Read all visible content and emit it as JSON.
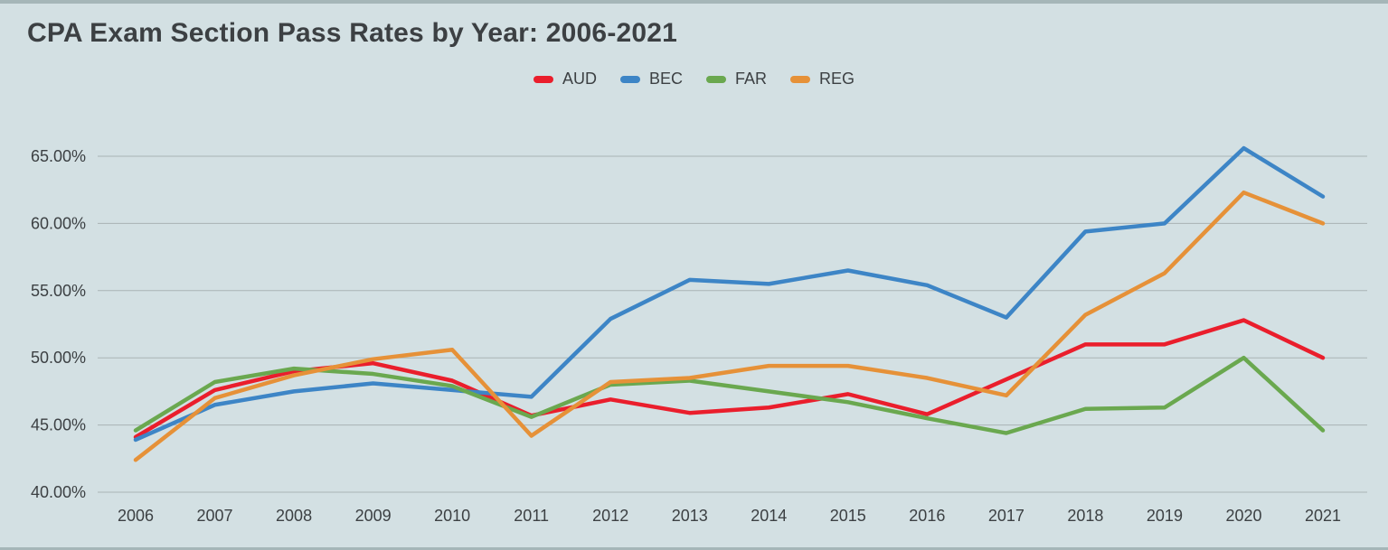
{
  "page": {
    "background_color": "#d3e0e3",
    "edge_color": "#a5b6b8",
    "text_color": "#3c4043",
    "grid_color": "#a9b3b5"
  },
  "chart_data": {
    "type": "line",
    "title": "CPA Exam Section Pass Rates by Year: 2006-2021",
    "xlabel": "",
    "ylabel": "",
    "x": [
      "2006",
      "2007",
      "2008",
      "2009",
      "2010",
      "2011",
      "2012",
      "2013",
      "2014",
      "2015",
      "2016",
      "2017",
      "2018",
      "2019",
      "2020",
      "2021"
    ],
    "ylim": [
      40,
      65
    ],
    "grid": true,
    "legend_position": "top-center",
    "yticks": [
      {
        "value": 40,
        "label": "40.00%"
      },
      {
        "value": 45,
        "label": "45.00%"
      },
      {
        "value": 50,
        "label": "50.00%"
      },
      {
        "value": 55,
        "label": "55.00%"
      },
      {
        "value": 60,
        "label": "60.00%"
      },
      {
        "value": 65,
        "label": "65.00%"
      }
    ],
    "series": [
      {
        "name": "AUD",
        "color": "#ea1e2c",
        "values": [
          44.1,
          47.6,
          49.0,
          49.6,
          48.3,
          45.7,
          46.9,
          45.9,
          46.3,
          47.3,
          45.8,
          48.4,
          51.0,
          51.0,
          52.8,
          50.0
        ]
      },
      {
        "name": "BEC",
        "color": "#3d85c6",
        "values": [
          43.9,
          46.5,
          47.5,
          48.1,
          47.6,
          47.1,
          52.9,
          55.8,
          55.5,
          56.5,
          55.4,
          53.0,
          59.4,
          60.0,
          65.6,
          62.0
        ]
      },
      {
        "name": "FAR",
        "color": "#6aa84f",
        "values": [
          44.6,
          48.2,
          49.2,
          48.8,
          47.9,
          45.6,
          48.0,
          48.3,
          47.5,
          46.7,
          45.5,
          44.4,
          46.2,
          46.3,
          50.0,
          44.6
        ]
      },
      {
        "name": "REG",
        "color": "#e69138",
        "values": [
          42.4,
          47.0,
          48.7,
          49.9,
          50.6,
          44.2,
          48.2,
          48.5,
          49.4,
          49.4,
          48.5,
          47.2,
          53.2,
          56.3,
          62.3,
          60.0
        ]
      }
    ]
  }
}
